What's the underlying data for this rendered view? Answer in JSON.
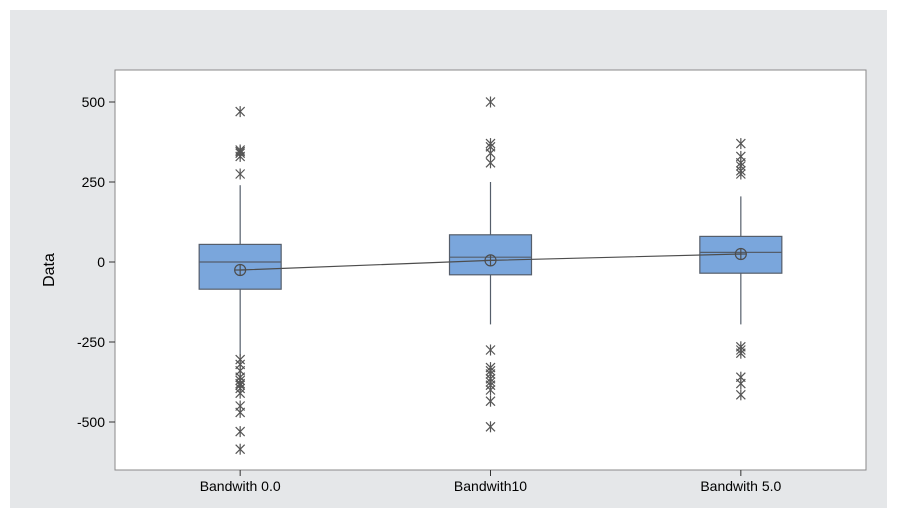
{
  "chart_data": {
    "type": "boxplot",
    "title": "",
    "xlabel": "",
    "ylabel": "Data",
    "ylim": [
      -650,
      600
    ],
    "yticks": [
      -500,
      -250,
      0,
      250,
      500
    ],
    "categories": [
      "Bandwith 0.0",
      "Bandwith10",
      "Bandwith 5.0"
    ],
    "boxes": [
      {
        "q1": -85,
        "median": 0,
        "q3": 55,
        "whisker_low": -295,
        "whisker_high": 240,
        "mean": -25,
        "outliers": [
          470,
          350,
          345,
          340,
          330,
          275,
          -305,
          -320,
          -340,
          -360,
          -370,
          -380,
          -385,
          -395,
          -410,
          -450,
          -470,
          -530,
          -585
        ]
      },
      {
        "q1": -40,
        "median": 15,
        "q3": 85,
        "whisker_low": -195,
        "whisker_high": 250,
        "mean": 5,
        "outliers": [
          500,
          370,
          360,
          340,
          310,
          -275,
          -330,
          -340,
          -350,
          -365,
          -375,
          -385,
          -400,
          -435,
          -515
        ]
      },
      {
        "q1": -35,
        "median": 30,
        "q3": 80,
        "whisker_low": -195,
        "whisker_high": 205,
        "mean": 25,
        "outliers": [
          370,
          330,
          310,
          300,
          285,
          275,
          -265,
          -275,
          -285,
          -360,
          -380,
          -415
        ]
      }
    ],
    "mean_connect_line": true,
    "grid": false,
    "legend": "none",
    "colors": {
      "box_fill": "#7aa6dc",
      "box_stroke": "#555e6b",
      "line": "#4d4d4d",
      "outlier": "#555555",
      "background": "#e5e7e9",
      "plot_area": "#ffffff"
    }
  }
}
